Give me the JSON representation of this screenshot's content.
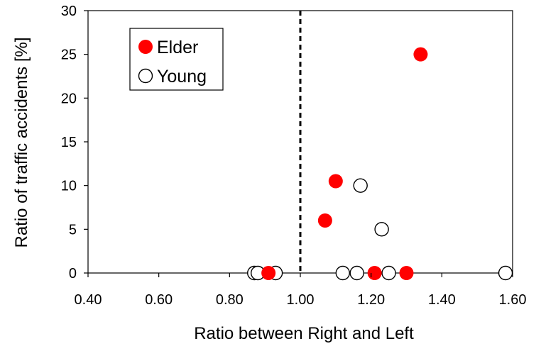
{
  "chart_data": {
    "type": "scatter",
    "title": "",
    "xlabel": "Ratio between Right and Left",
    "ylabel": "Ratio of traffic accidents [%]",
    "xlim": [
      0.4,
      1.6
    ],
    "ylim": [
      0,
      30
    ],
    "x_ticks": [
      "0.40",
      "0.60",
      "0.80",
      "1.00",
      "1.20",
      "1.40",
      "1.60"
    ],
    "y_ticks": [
      "0",
      "5",
      "10",
      "15",
      "20",
      "25",
      "30"
    ],
    "grid": false,
    "legend_position": "top-left",
    "reference_line": {
      "x": 1.0,
      "style": "dashed"
    },
    "series": [
      {
        "name": "Elder",
        "marker": "filled-circle",
        "color": "#ff0000",
        "points": [
          {
            "x": 1.34,
            "y": 25
          },
          {
            "x": 1.1,
            "y": 10.5
          },
          {
            "x": 1.07,
            "y": 6
          },
          {
            "x": 0.91,
            "y": 0
          },
          {
            "x": 1.21,
            "y": 0
          },
          {
            "x": 1.3,
            "y": 0
          }
        ]
      },
      {
        "name": "Young",
        "marker": "open-circle",
        "color": "#000000",
        "points": [
          {
            "x": 1.17,
            "y": 10
          },
          {
            "x": 1.23,
            "y": 5
          },
          {
            "x": 0.87,
            "y": 0
          },
          {
            "x": 0.88,
            "y": 0
          },
          {
            "x": 0.93,
            "y": 0
          },
          {
            "x": 1.12,
            "y": 0
          },
          {
            "x": 1.16,
            "y": 0
          },
          {
            "x": 1.25,
            "y": 0
          },
          {
            "x": 1.58,
            "y": 0
          }
        ]
      }
    ]
  }
}
